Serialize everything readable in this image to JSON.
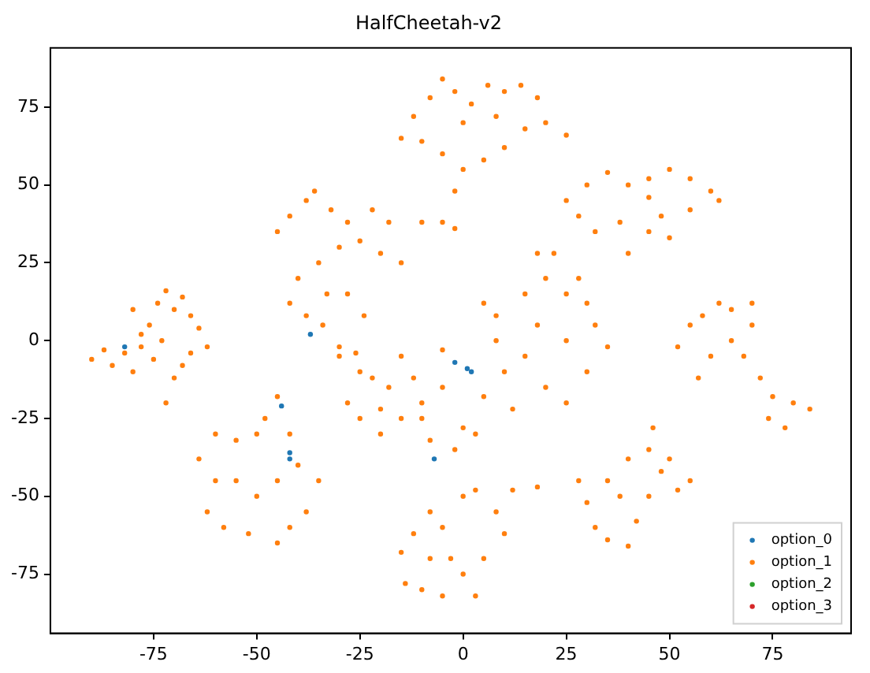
{
  "chart_data": {
    "type": "scatter",
    "title": "HalfCheetah-v2",
    "xlim": [
      -100,
      94
    ],
    "ylim": [
      -94,
      94
    ],
    "xticks": [
      -75,
      -50,
      -25,
      0,
      25,
      50,
      75
    ],
    "yticks": [
      -75,
      -50,
      -25,
      0,
      25,
      50,
      75
    ],
    "grid": false,
    "legend": "bottom right",
    "marker": "circle",
    "series": [
      {
        "name": "option_0",
        "color": "#1f77b4",
        "x": [
          -82,
          -37,
          -44,
          -42,
          -42,
          -7,
          -2,
          1,
          2
        ],
        "values": [
          -2,
          2,
          -21,
          -36,
          -38,
          -38,
          -7,
          -9,
          -10
        ]
      },
      {
        "name": "option_1",
        "color": "#ff7f0e",
        "x": [
          -90,
          -87,
          -85,
          -82,
          -80,
          -78,
          -76,
          -74,
          -72,
          -70,
          -68,
          -66,
          -64,
          -62,
          -66,
          -70,
          -72,
          -75,
          -80,
          -78,
          -73,
          -68,
          -45,
          -42,
          -38,
          -36,
          -32,
          -28,
          -25,
          -20,
          -15,
          -18,
          -22,
          -30,
          -35,
          -40,
          -42,
          -38,
          -34,
          -30,
          -26,
          -24,
          -28,
          -33,
          -10,
          -5,
          -2,
          -15,
          -12,
          -8,
          -5,
          -2,
          2,
          6,
          10,
          14,
          18,
          20,
          15,
          10,
          5,
          0,
          -5,
          -10,
          0,
          8,
          25,
          -2,
          25,
          28,
          30,
          35,
          40,
          45,
          50,
          55,
          60,
          62,
          55,
          48,
          45,
          50,
          40,
          38,
          32,
          45,
          5,
          8,
          8,
          10,
          12,
          15,
          18,
          20,
          18,
          22,
          25,
          30,
          32,
          35,
          30,
          25,
          20,
          15,
          25,
          28,
          -30,
          -28,
          -25,
          -20,
          -15,
          -10,
          -5,
          0,
          5,
          3,
          -2,
          -8,
          -12,
          -18,
          -22,
          -15,
          -5,
          -25,
          -10,
          -20,
          -64,
          -60,
          -55,
          -50,
          -48,
          -45,
          -60,
          -62,
          -58,
          -52,
          -45,
          -42,
          -38,
          -35,
          -40,
          -45,
          -50,
          -55,
          -42,
          -15,
          -12,
          -8,
          -5,
          0,
          3,
          8,
          10,
          5,
          0,
          -5,
          -10,
          -14,
          3,
          -3,
          -8,
          12,
          18,
          28,
          30,
          32,
          35,
          40,
          42,
          38,
          35,
          40,
          45,
          50,
          55,
          52,
          45,
          48,
          46,
          52,
          55,
          58,
          62,
          65,
          70,
          70,
          68,
          72,
          75,
          80,
          84,
          78,
          74,
          60,
          65,
          57
        ],
        "values": [
          -6,
          -3,
          -8,
          -4,
          -10,
          -2,
          5,
          12,
          16,
          10,
          14,
          8,
          4,
          -2,
          -4,
          -12,
          -20,
          -6,
          10,
          2,
          0,
          -8,
          35,
          40,
          45,
          48,
          42,
          38,
          32,
          28,
          25,
          38,
          42,
          30,
          25,
          20,
          12,
          8,
          5,
          -2,
          -4,
          8,
          15,
          15,
          38,
          38,
          36,
          65,
          72,
          78,
          84,
          80,
          76,
          82,
          80,
          82,
          78,
          70,
          68,
          62,
          58,
          55,
          60,
          64,
          70,
          72,
          66,
          48,
          45,
          40,
          50,
          54,
          50,
          52,
          55,
          52,
          48,
          45,
          42,
          40,
          35,
          33,
          28,
          38,
          35,
          46,
          12,
          8,
          0,
          -10,
          -22,
          -5,
          5,
          20,
          28,
          28,
          15,
          12,
          5,
          -2,
          -10,
          -20,
          -15,
          15,
          0,
          20,
          -5,
          -20,
          -25,
          -30,
          -25,
          -20,
          -15,
          -28,
          -18,
          -30,
          -35,
          -32,
          -12,
          -15,
          -12,
          -5,
          -3,
          -10,
          -25,
          -22,
          -38,
          -30,
          -32,
          -30,
          -25,
          -18,
          -45,
          -55,
          -60,
          -62,
          -65,
          -60,
          -55,
          -45,
          -40,
          -45,
          -50,
          -45,
          -30,
          -68,
          -62,
          -55,
          -60,
          -50,
          -48,
          -55,
          -62,
          -70,
          -75,
          -82,
          -80,
          -78,
          -82,
          -70,
          -70,
          -48,
          -47,
          -45,
          -52,
          -60,
          -64,
          -66,
          -58,
          -50,
          -45,
          -38,
          -35,
          -38,
          -45,
          -48,
          -50,
          -42,
          -28,
          -2,
          5,
          8,
          12,
          10,
          12,
          5,
          -5,
          -12,
          -18,
          -20,
          -22,
          -28,
          -25,
          -5,
          0,
          -12
        ]
      },
      {
        "name": "option_2",
        "color": "#2ca02c"
      },
      {
        "name": "option_3",
        "color": "#d62728"
      }
    ]
  }
}
